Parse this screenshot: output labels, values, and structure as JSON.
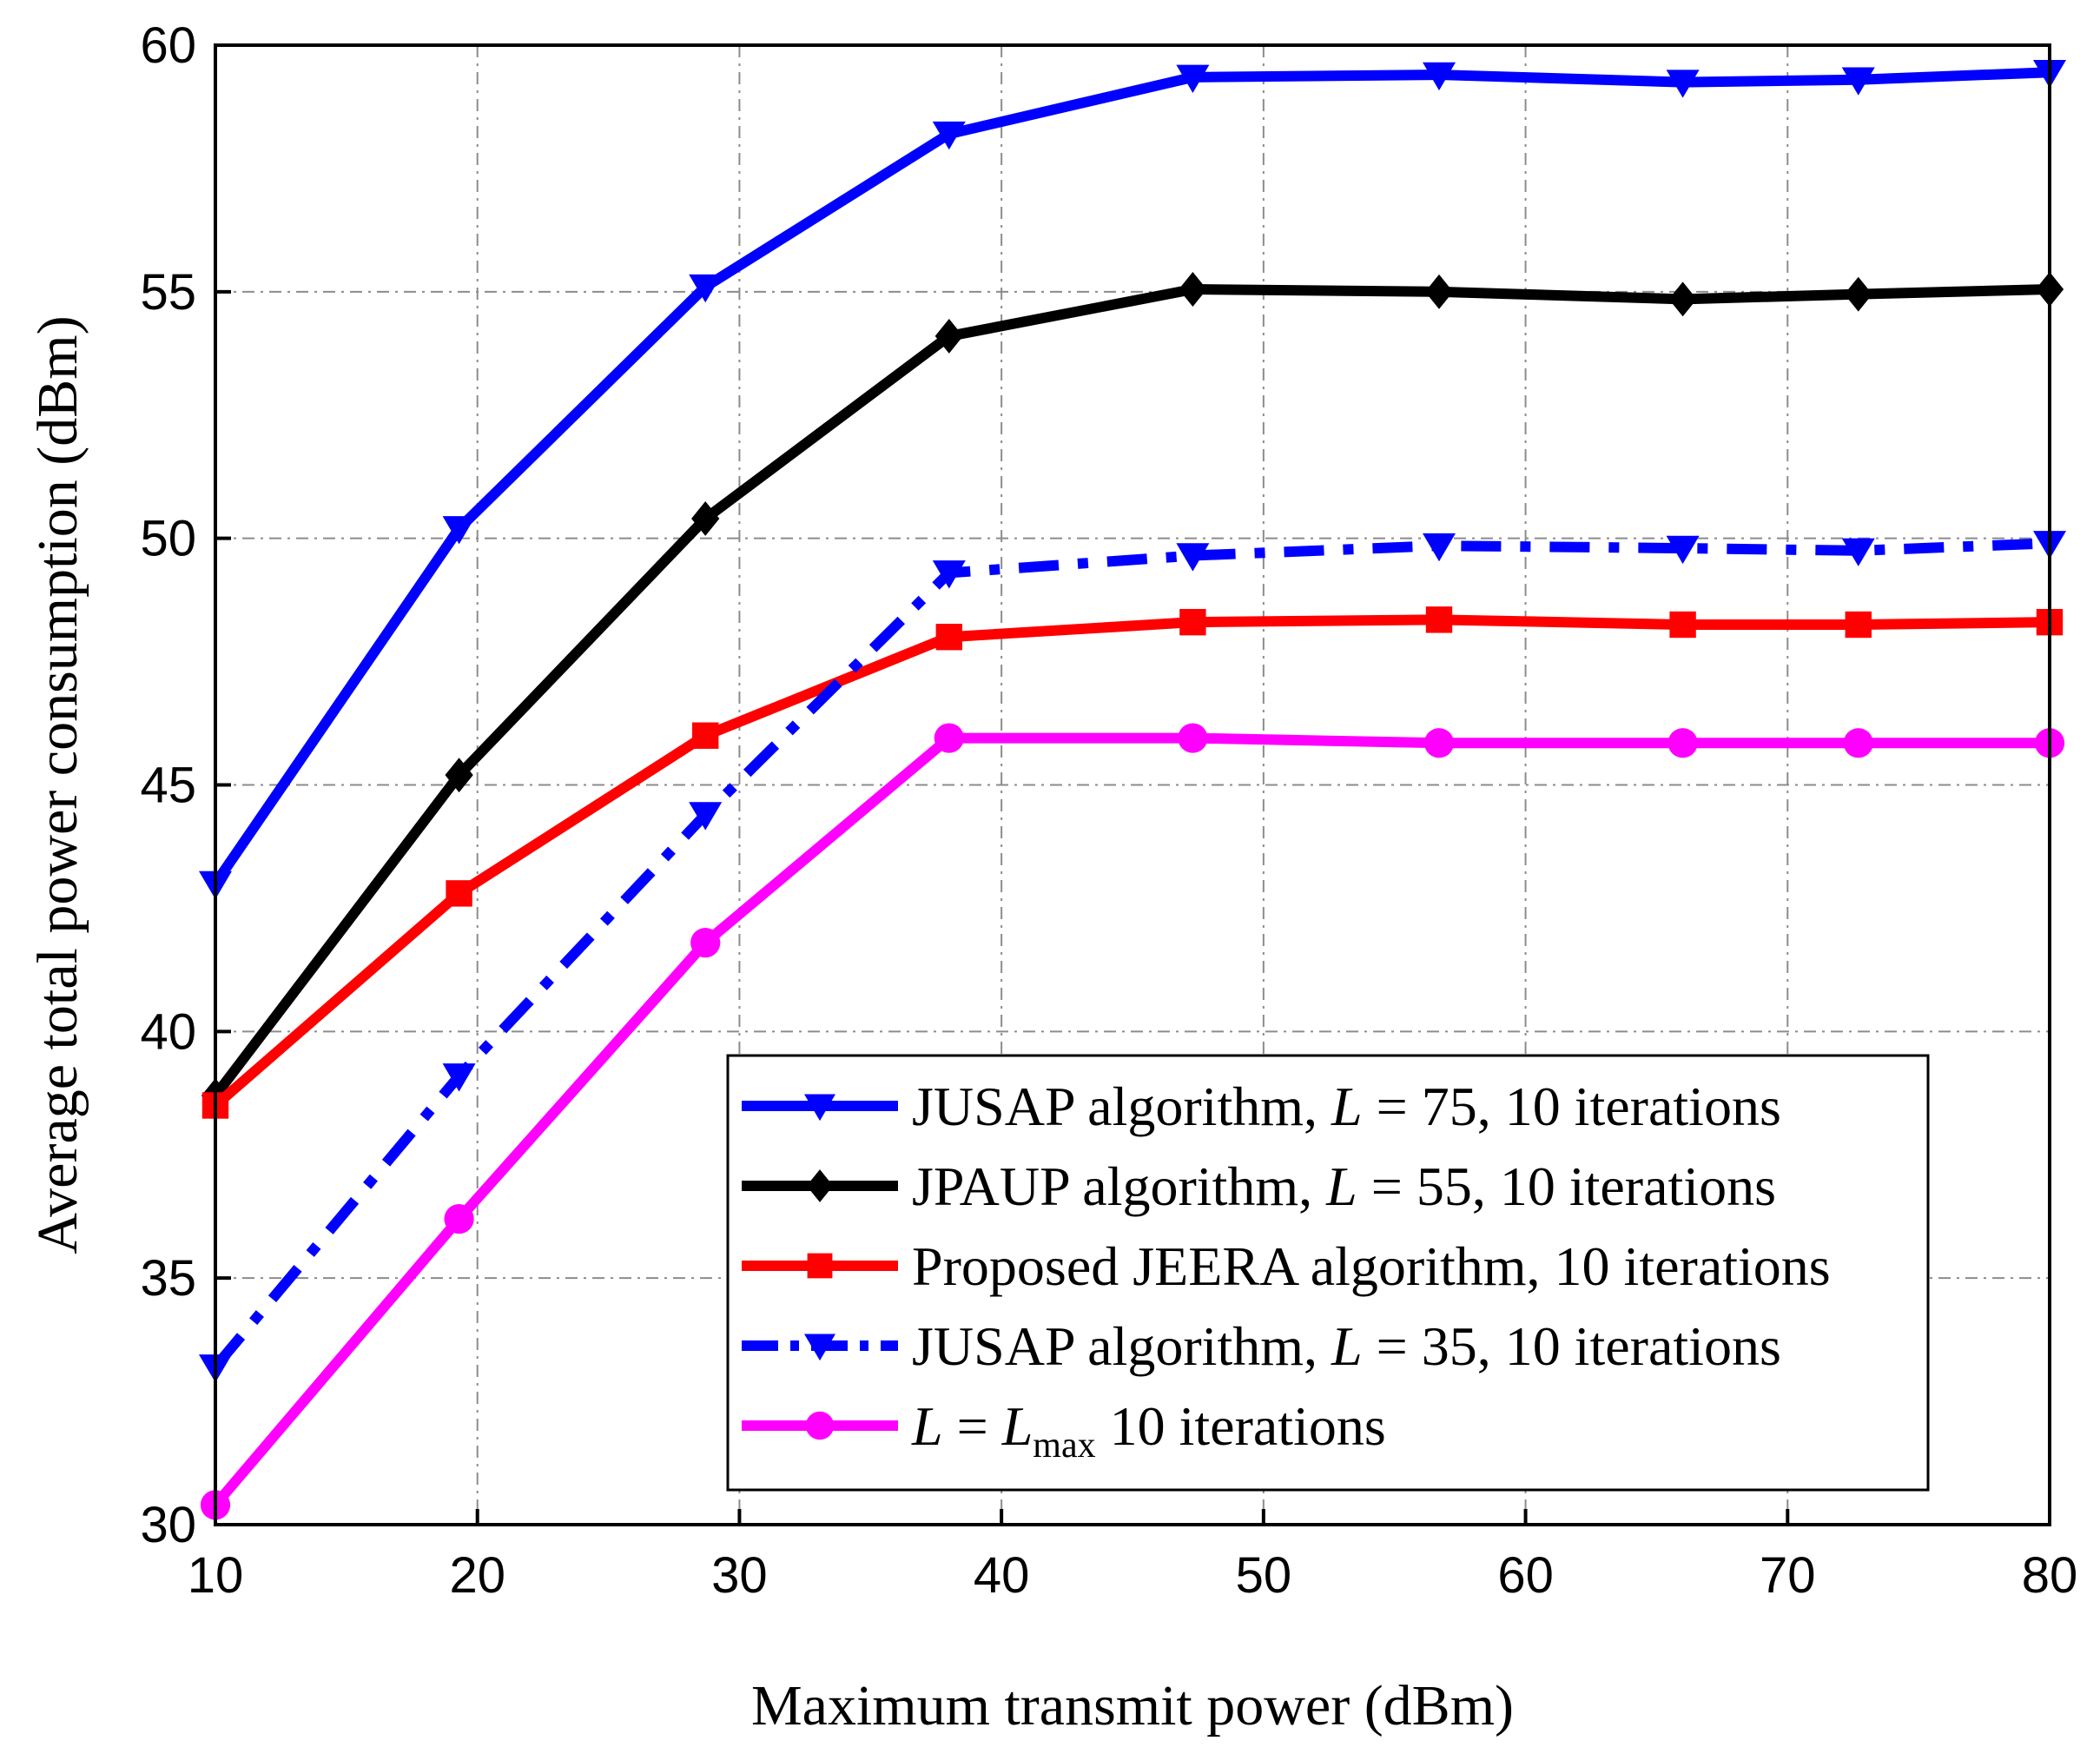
{
  "chart_data": {
    "type": "line",
    "title": "",
    "xlabel": "Maximum transmit power (dBm)",
    "ylabel": "Average total power consumption (dBm)",
    "xlim": [
      10,
      80
    ],
    "ylim": [
      30,
      60
    ],
    "xticks": [
      "10",
      "20",
      "30",
      "40",
      "50",
      "60",
      "70",
      "80"
    ],
    "yticks": [
      "30",
      "35",
      "40",
      "45",
      "50",
      "55",
      "60"
    ],
    "grid": true,
    "legend_position": "bottom-right",
    "series": [
      {
        "name": "JUSAP algorithm, L = 75, 10 iterations",
        "legend_parts": [
          "JUSAP algorithm, ",
          "L",
          " = 75, 10 iterations"
        ],
        "color": "#0000ff",
        "line_style": "solid",
        "marker": "triangle-down",
        "x": [
          10,
          19.3,
          28.7,
          38,
          47.3,
          56.7,
          66,
          72.7,
          80
        ],
        "y": [
          43.0,
          50.2,
          55.1,
          58.2,
          59.35,
          59.4,
          59.25,
          59.3,
          59.45
        ]
      },
      {
        "name": "JPAUP algorithm, L = 55, 10 iterations",
        "legend_parts": [
          "JPAUP algorithm, ",
          "L",
          " = 55, 10 iterations"
        ],
        "color": "#000000",
        "line_style": "solid",
        "marker": "diamond",
        "x": [
          10,
          19.3,
          28.7,
          38,
          47.3,
          56.7,
          66,
          72.7,
          80
        ],
        "y": [
          38.7,
          45.2,
          50.4,
          54.1,
          55.05,
          55.0,
          54.85,
          54.95,
          55.05
        ]
      },
      {
        "name": "Proposed JEERA algorithm, 10 iterations",
        "legend_parts": [
          "Proposed JEERA algorithm, 10 iterations"
        ],
        "color": "#ff0000",
        "line_style": "solid",
        "marker": "square",
        "x": [
          10,
          19.3,
          28.7,
          38,
          47.3,
          56.7,
          66,
          72.7,
          80
        ],
        "y": [
          38.5,
          42.8,
          46.0,
          48.0,
          48.3,
          48.35,
          48.25,
          48.25,
          48.3
        ]
      },
      {
        "name": "JUSAP algorithm, L = 35, 10 iterations",
        "legend_parts": [
          "JUSAP algorithm, ",
          "L",
          " = 35, 10 iterations"
        ],
        "color": "#0000ff",
        "line_style": "dashdot",
        "marker": "triangle-down",
        "x": [
          10,
          19.3,
          28.7,
          38,
          47.3,
          56.7,
          66,
          72.7,
          80
        ],
        "y": [
          33.2,
          39.1,
          44.4,
          49.3,
          49.65,
          49.85,
          49.8,
          49.75,
          49.9
        ]
      },
      {
        "name": "L = Lmax 10 iterations",
        "legend_parts": [
          "L",
          " = ",
          "L",
          "max",
          " 10 iterations"
        ],
        "color": "#ff00ff",
        "line_style": "solid",
        "marker": "circle",
        "x": [
          10,
          19.3,
          28.7,
          38,
          47.3,
          56.7,
          66,
          72.7,
          80
        ],
        "y": [
          30.4,
          36.2,
          41.8,
          45.95,
          45.95,
          45.85,
          45.85,
          45.85,
          45.85
        ]
      }
    ]
  }
}
